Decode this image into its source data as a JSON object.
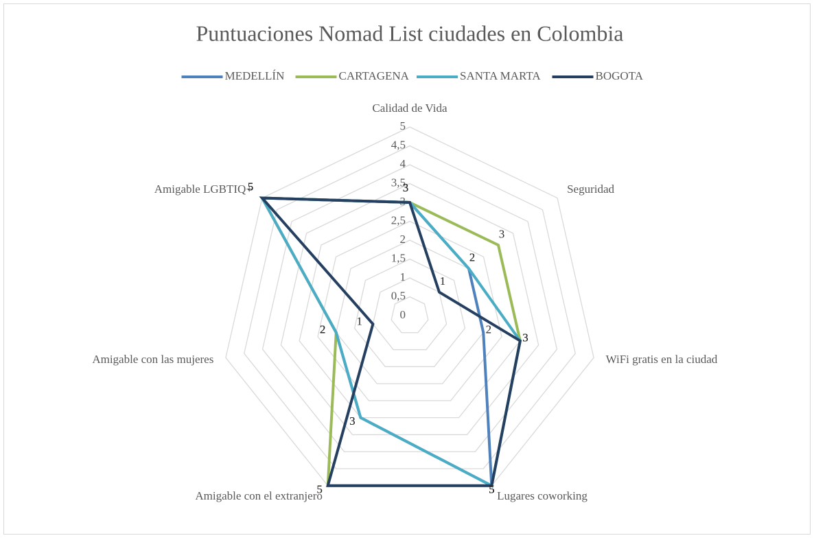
{
  "chart_data": {
    "type": "radar",
    "title": "Puntuaciones Nomad List ciudades en Colombia",
    "categories": [
      "Calidad de Vida",
      "Seguridad",
      "WiFi gratis en la ciudad",
      "Lugares coworking",
      "Amigable con el extranjero",
      "Amigable con las mujeres",
      "Amigable LGBTIQ+"
    ],
    "series": [
      {
        "name": "MEDELLÍN",
        "color": "#4f81bd",
        "values": [
          3,
          2,
          2,
          5,
          3,
          2,
          5
        ]
      },
      {
        "name": "CARTAGENA",
        "color": "#9bbb59",
        "values": [
          3,
          3,
          3,
          5,
          5,
          2,
          5
        ]
      },
      {
        "name": "SANTA MARTA",
        "color": "#4bacc6",
        "values": [
          3,
          2,
          3,
          5,
          3,
          2,
          5
        ]
      },
      {
        "name": "BOGOTA",
        "color": "#243f60",
        "values": [
          3,
          1,
          3,
          5,
          5,
          1,
          5
        ]
      }
    ],
    "ylim": [
      0,
      5
    ],
    "yticks": [
      0,
      {
        "value": 0.5,
        "label": "0,5"
      },
      1,
      {
        "value": 1.5,
        "label": "1,5"
      },
      2,
      {
        "value": 2.5,
        "label": "2,5"
      },
      3,
      {
        "value": 3.5,
        "label": "3,5"
      },
      4,
      {
        "value": 4.5,
        "label": "4,5"
      },
      5
    ],
    "grid": true,
    "legend": "top"
  }
}
